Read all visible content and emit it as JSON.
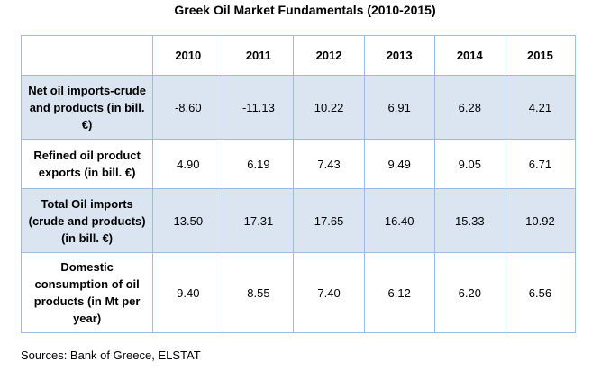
{
  "title": "Greek Oil Market Fundamentals (2010-2015)",
  "chart_data": {
    "type": "table",
    "title": "Greek Oil Market Fundamentals (2010-2015)",
    "columns": [
      "",
      "2010",
      "2011",
      "2012",
      "2013",
      "2014",
      "2015"
    ],
    "rows": [
      {
        "label": "Net oil imports-crude and products (in bill. €)",
        "values": [
          "-8.60",
          "-11.13",
          "10.22",
          "6.91",
          "6.28",
          "4.21"
        ]
      },
      {
        "label": "Refined oil product exports (in bill. €)",
        "values": [
          "4.90",
          "6.19",
          "7.43",
          "9.49",
          "9.05",
          "6.71"
        ]
      },
      {
        "label": "Total Oil imports (crude and products) (in bill. €)",
        "values": [
          "13.50",
          "17.31",
          "17.65",
          "16.40",
          "15.33",
          "10.92"
        ]
      },
      {
        "label": "Domestic consumption of oil products (in Mt per year)",
        "values": [
          "9.40",
          "8.55",
          "7.40",
          "6.12",
          "6.20",
          "6.56"
        ]
      }
    ]
  },
  "source": "Sources: Bank of Greece, ELSTAT",
  "colors": {
    "shaded_row": "#dbe5f1",
    "border": "#9bbbe0"
  }
}
